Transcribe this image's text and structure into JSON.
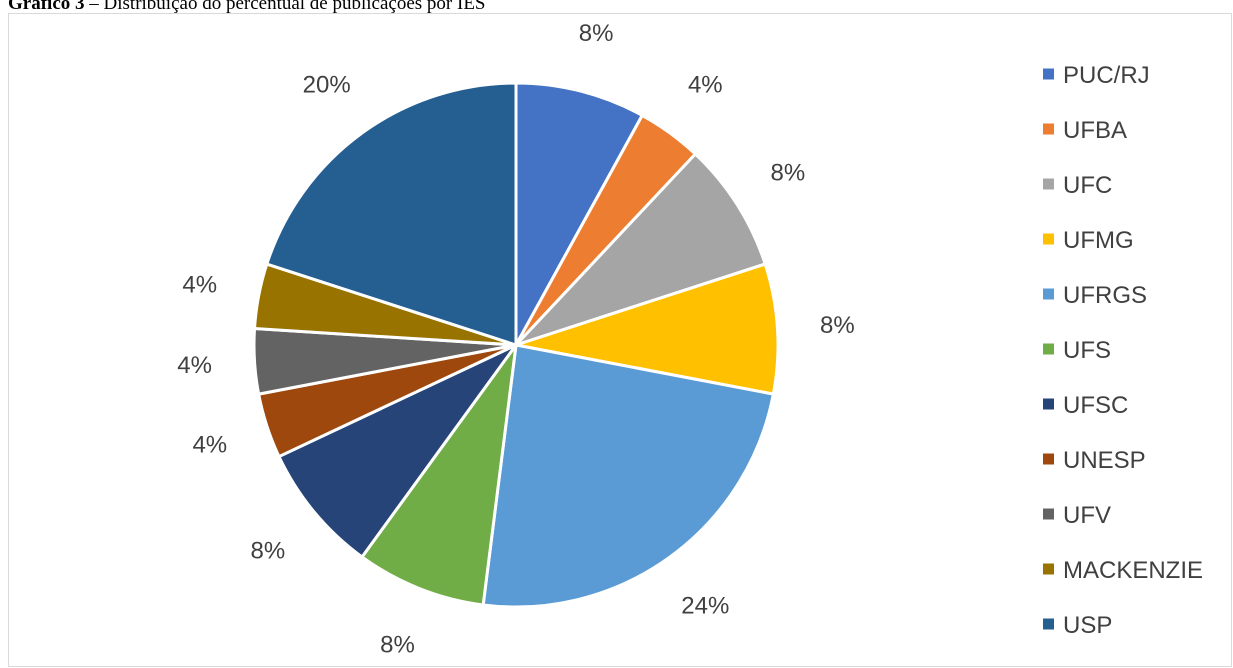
{
  "caption": {
    "prefix": "Gráfico 3",
    "text": " – Distribuição do percentual de publicações por IES"
  },
  "chart_data": {
    "type": "pie",
    "title": "",
    "legend_position": "right",
    "slices": [
      {
        "label": "PUC/RJ",
        "value": 8,
        "display": "8%",
        "color": "#4472C4"
      },
      {
        "label": "UFBA",
        "value": 4,
        "display": "4%",
        "color": "#ED7D31"
      },
      {
        "label": "UFC",
        "value": 8,
        "display": "8%",
        "color": "#A5A5A5"
      },
      {
        "label": "UFMG",
        "value": 8,
        "display": "8%",
        "color": "#FFC000"
      },
      {
        "label": "UFRGS",
        "value": 24,
        "display": "24%",
        "color": "#5B9BD5"
      },
      {
        "label": "UFS",
        "value": 8,
        "display": "8%",
        "color": "#70AD47"
      },
      {
        "label": "UFSC",
        "value": 8,
        "display": "8%",
        "color": "#264478"
      },
      {
        "label": "UNESP",
        "value": 4,
        "display": "4%",
        "color": "#9E480E"
      },
      {
        "label": "UFV",
        "value": 4,
        "display": "4%",
        "color": "#636363"
      },
      {
        "label": "MACKENZIE",
        "value": 4,
        "display": "4%",
        "color": "#997300"
      },
      {
        "label": "USP",
        "value": 20,
        "display": "20%",
        "color": "#255E91"
      }
    ]
  }
}
